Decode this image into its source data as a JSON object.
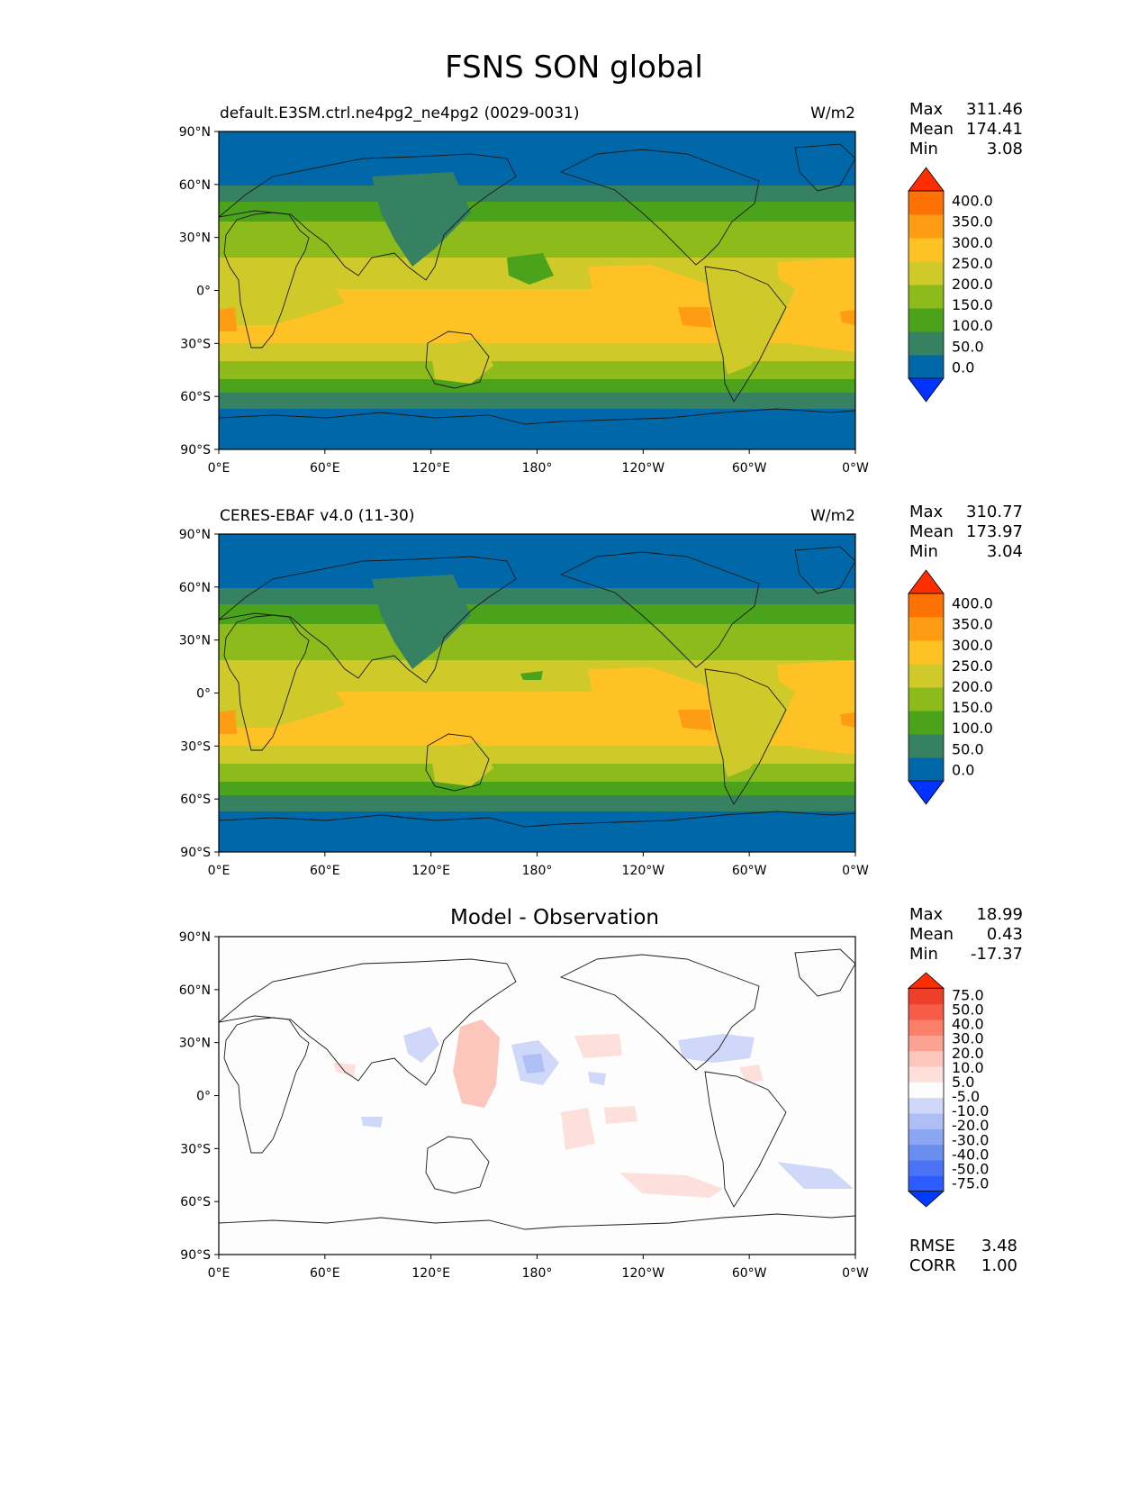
{
  "figure": {
    "title": "FSNS SON global"
  },
  "panels": [
    {
      "title_left": "default.E3SM.ctrl.ne4pg2_ne4pg2 (0029-0031)",
      "title_right": "W/m2",
      "stats": {
        "max_label": "Max",
        "max": "311.46",
        "mean_label": "Mean",
        "mean": "174.41",
        "min_label": "Min",
        "min": "3.08"
      },
      "colorbar_ticks": [
        "400.0",
        "350.0",
        "300.0",
        "250.0",
        "200.0",
        "150.0",
        "100.0",
        "50.0",
        "0.0"
      ]
    },
    {
      "title_left": "CERES-EBAF v4.0 (11-30)",
      "title_right": "W/m2",
      "stats": {
        "max_label": "Max",
        "max": "310.77",
        "mean_label": "Mean",
        "mean": "173.97",
        "min_label": "Min",
        "min": "3.04"
      },
      "colorbar_ticks": [
        "400.0",
        "350.0",
        "300.0",
        "250.0",
        "200.0",
        "150.0",
        "100.0",
        "50.0",
        "0.0"
      ]
    },
    {
      "title_center": "Model - Observation",
      "stats": {
        "max_label": "Max",
        "max": "18.99",
        "mean_label": "Mean",
        "mean": "0.43",
        "min_label": "Min",
        "min": "-17.37"
      },
      "colorbar_ticks": [
        "75.0",
        "50.0",
        "40.0",
        "30.0",
        "20.0",
        "10.0",
        "5.0",
        "-5.0",
        "-10.0",
        "-20.0",
        "-30.0",
        "-40.0",
        "-50.0",
        "-75.0"
      ],
      "metrics": {
        "rmse_label": "RMSE",
        "rmse": "3.48",
        "corr_label": "CORR",
        "corr": "1.00"
      }
    }
  ],
  "axes": {
    "lat_ticks": [
      "90°N",
      "60°N",
      "30°N",
      "0°",
      "30°S",
      "60°S",
      "90°S"
    ],
    "lon_ticks": [
      "0°E",
      "60°E",
      "120°E",
      "180°",
      "120°W",
      "60°W",
      "0°W"
    ]
  },
  "colors": {
    "fsns_levels": [
      "#0033ff",
      "#0068a8",
      "#368162",
      "#4aa31b",
      "#8ebb1c",
      "#cfc92a",
      "#fec225",
      "#fe9d14",
      "#fe7205",
      "#fe2e00"
    ],
    "diff_levels": [
      "#0039ff",
      "#2c5cff",
      "#4a74f5",
      "#6a8df0",
      "#8ba6f2",
      "#aebff5",
      "#cfd8f8",
      "#fdfdfd",
      "#fde0dc",
      "#fcc6bd",
      "#fca294",
      "#fb7f69",
      "#f65c46",
      "#ee3f2a",
      "#fe2e00"
    ]
  }
}
